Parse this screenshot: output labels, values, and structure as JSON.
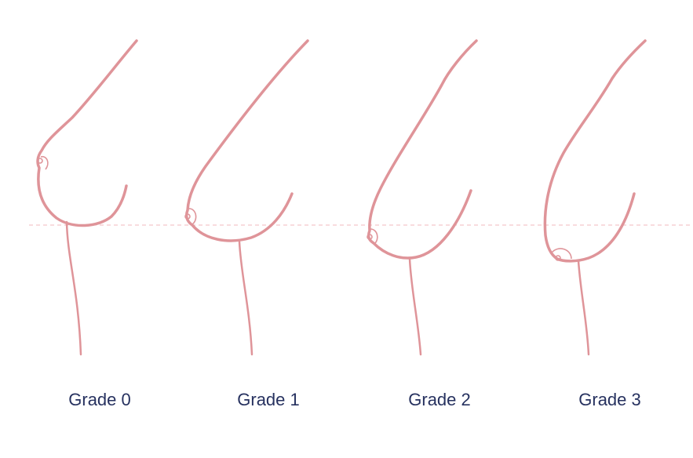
{
  "labels": [
    "Grade 0",
    "Grade 1",
    "Grade 2",
    "Grade 3"
  ]
}
